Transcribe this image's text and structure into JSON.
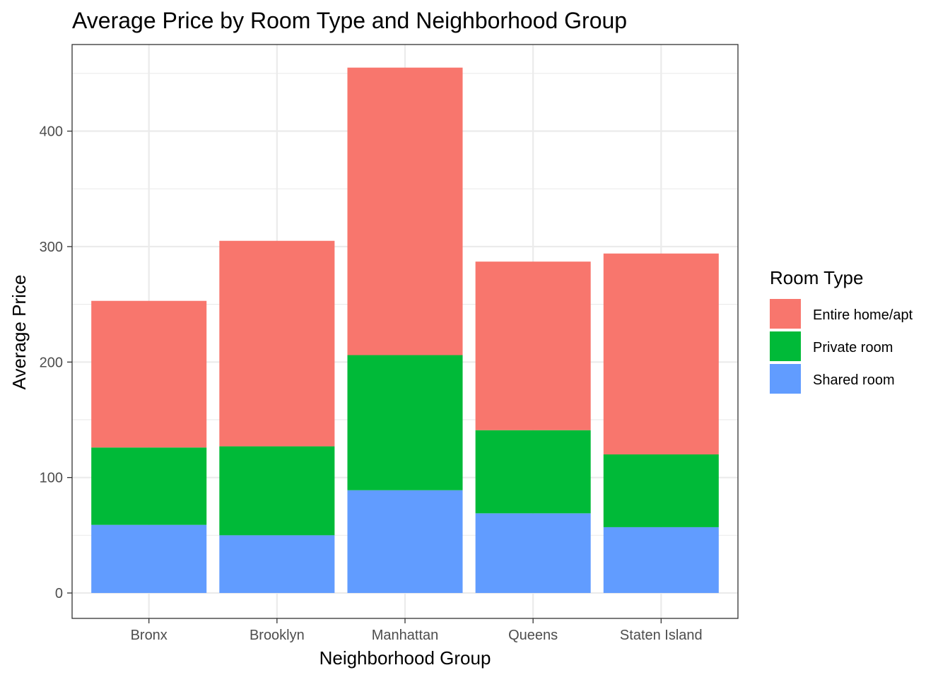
{
  "chart_data": {
    "type": "bar",
    "stacked": true,
    "title": "Average Price by Room Type and Neighborhood Group",
    "xlabel": "Neighborhood Group",
    "ylabel": "Average Price",
    "categories": [
      "Bronx",
      "Brooklyn",
      "Manhattan",
      "Queens",
      "Staten Island"
    ],
    "series": [
      {
        "name": "Shared room",
        "color": "#619CFF",
        "values": [
          59,
          50,
          89,
          69,
          57
        ]
      },
      {
        "name": "Private room",
        "color": "#00BA38",
        "values": [
          67,
          77,
          117,
          72,
          63
        ]
      },
      {
        "name": "Entire home/apt",
        "color": "#F8766D",
        "values": [
          127,
          178,
          249,
          146,
          174
        ]
      }
    ],
    "ylim": [
      -22,
      475
    ],
    "yticks": [
      0,
      100,
      200,
      300,
      400
    ],
    "grid": true,
    "legend": {
      "title": "Room Type",
      "position": "right",
      "entries": [
        "Entire home/apt",
        "Private room",
        "Shared room"
      ]
    }
  }
}
